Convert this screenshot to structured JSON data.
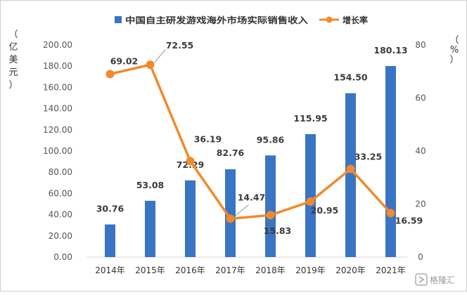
{
  "chart_data": {
    "type": "bar+line",
    "categories": [
      "2014年",
      "2015年",
      "2016年",
      "2017年",
      "2018年",
      "2019年",
      "2020年",
      "2021年"
    ],
    "series": [
      {
        "name": "中国自主研发游戏海外市场实际销售收入",
        "type": "bar",
        "axis": "left",
        "color": "#3a74c4",
        "values": [
          30.76,
          53.08,
          72.29,
          82.76,
          95.86,
          115.95,
          154.5,
          180.13
        ],
        "labels": [
          "30.76",
          "53.08",
          "72.29",
          "82.76",
          "95.86",
          "115.95",
          "154.50",
          "180.13"
        ]
      },
      {
        "name": "增长率",
        "type": "line",
        "axis": "right",
        "color": "#f08a2c",
        "values": [
          69.02,
          72.55,
          36.19,
          14.47,
          15.83,
          20.95,
          33.25,
          16.59
        ],
        "labels": [
          "69.02",
          "72.55",
          "36.19",
          "14.47",
          "15.83",
          "20.95",
          "33.25",
          "16.59"
        ]
      }
    ],
    "y_left": {
      "label_chars": [
        "（",
        "亿",
        "美",
        "元",
        "）"
      ],
      "min": 0,
      "max": 200,
      "step": 20,
      "ticks": [
        "0.00",
        "20.00",
        "40.00",
        "60.00",
        "80.00",
        "100.00",
        "120.00",
        "140.00",
        "160.00",
        "180.00",
        "200.00"
      ]
    },
    "y_right": {
      "label_chars": [
        "（",
        "%",
        "）"
      ],
      "min": 0,
      "max": 80,
      "step": 20,
      "ticks": [
        "0",
        "20",
        "40",
        "60",
        "80"
      ]
    },
    "grid": false,
    "legend": "top"
  },
  "watermark": {
    "text": "格隆汇",
    "icon": "glh-logo-icon"
  }
}
